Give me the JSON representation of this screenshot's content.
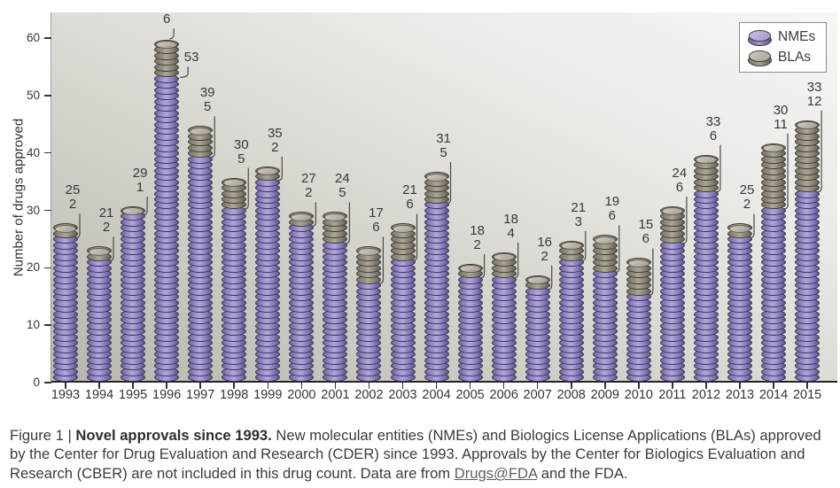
{
  "chart_data": {
    "type": "bar",
    "stacked": true,
    "title": "",
    "xlabel": "",
    "ylabel": "Number of drugs approved",
    "ylim": [
      0,
      60
    ],
    "yticks": [
      0,
      10,
      20,
      30,
      40,
      50,
      60
    ],
    "grid": false,
    "legend_position": "top-right",
    "categories": [
      "1993",
      "1994",
      "1995",
      "1996",
      "1997",
      "1998",
      "1999",
      "2000",
      "2001",
      "2002",
      "2003",
      "2004",
      "2005",
      "2006",
      "2007",
      "2008",
      "2009",
      "2010",
      "2011",
      "2012",
      "2013",
      "2014",
      "2015"
    ],
    "series": [
      {
        "name": "NMEs",
        "color": "#9b8cc8",
        "values": [
          25,
          21,
          29,
          53,
          39,
          30,
          35,
          27,
          24,
          17,
          21,
          31,
          18,
          18,
          16,
          21,
          19,
          15,
          24,
          33,
          25,
          30,
          33
        ]
      },
      {
        "name": "BLAs",
        "color": "#97917f",
        "values": [
          2,
          2,
          1,
          6,
          5,
          5,
          2,
          2,
          5,
          6,
          6,
          5,
          2,
          4,
          2,
          3,
          6,
          6,
          6,
          6,
          2,
          11,
          12
        ]
      }
    ],
    "annotations": "Each bar is labelled with the NME count and the BLA count; bars are drawn as stacks of one disc per approved drug"
  },
  "legend": {
    "nme_label": "NMEs",
    "bla_label": "BLAs"
  },
  "caption": {
    "prefix": "Figure 1 | ",
    "title": "Novel approvals since 1993.",
    "body_before_link": " New molecular entities (NMEs) and Biologics License Applications (BLAs) approved by the Center for Drug Evaluation and Research (CDER) since 1993. Approvals by the Center for Biologics Evaluation and Research (CBER) are not included in this drug count. Data are from ",
    "link_text": "Drugs@FDA",
    "body_after_link": " and the FDA."
  },
  "colors": {
    "nme_disc": "#9b8cc8",
    "bla_disc": "#97917f",
    "plot_background_dark": "#b7b5ad",
    "plot_background_light": "#f7f6f3",
    "axis": "#232323",
    "text": "#3a3a3a",
    "link": "#5f5f5f"
  }
}
